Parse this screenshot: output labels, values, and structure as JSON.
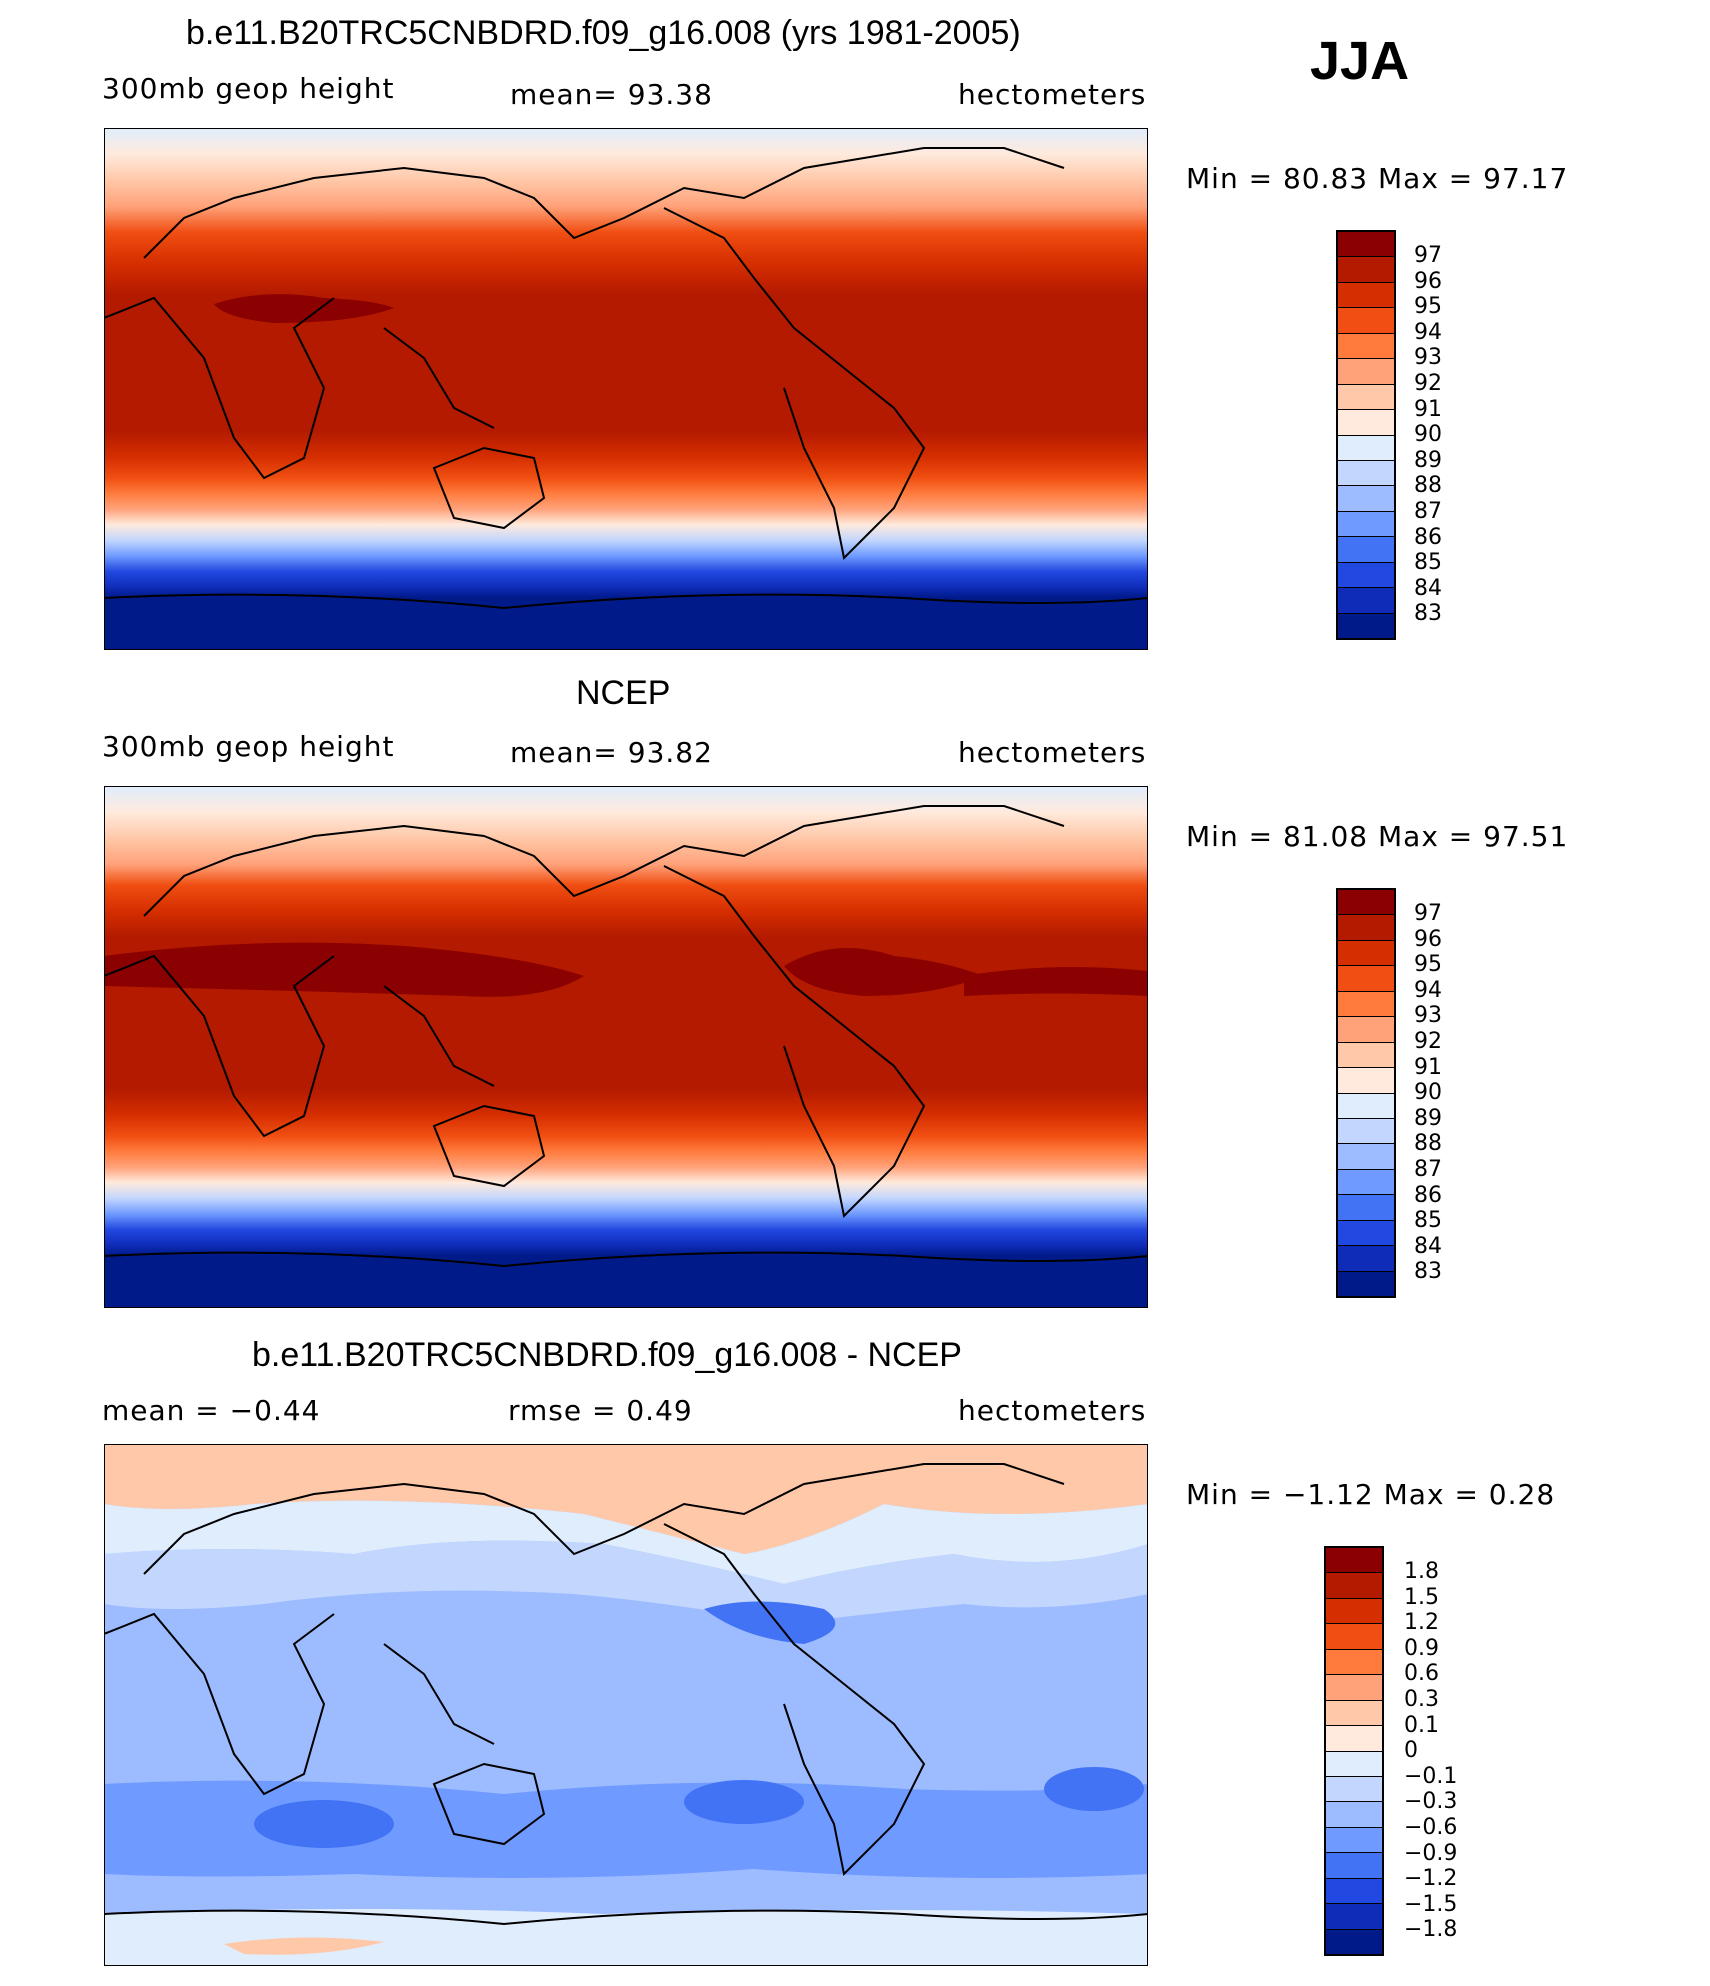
{
  "header": {
    "season": "JJA"
  },
  "panels": [
    {
      "title": "b.e11.B20TRC5CNBDRD.f09_g16.008 (yrs 1981-2005)",
      "left_label": "300mb  geop  height",
      "center_label": "mean=   93.38",
      "units": "hectometers",
      "minmax": "Min  =    80.83  Max  =    97.17",
      "colorbar": {
        "labels": [
          "97",
          "96",
          "95",
          "94",
          "93",
          "92",
          "91",
          "90",
          "89",
          "88",
          "87",
          "86",
          "85",
          "84",
          "83"
        ],
        "colors": [
          "#8b0000",
          "#b31a00",
          "#d52e00",
          "#f04e12",
          "#ff7b3d",
          "#ffa27a",
          "#ffc8a8",
          "#ffeadd",
          "#dfedfd",
          "#c2d6fe",
          "#9dbcff",
          "#6f9aff",
          "#4273f5",
          "#2148e0",
          "#0f2cb8",
          "#001a8a"
        ]
      },
      "field": {
        "type": "absolute",
        "comment": "Zonal contour bands of 300mb geopotential height (hm), north to south",
        "band_colors": [
          "#dfedfd",
          "#ffeadd",
          "#ffc8a8",
          "#ffa27a",
          "#ff7b3d",
          "#f04e12",
          "#d52e00",
          "#b31a00",
          "#b31a00",
          "#d52e00",
          "#f04e12",
          "#ff7b3d",
          "#ffa27a",
          "#ffc8a8",
          "#ffeadd",
          "#dfedfd",
          "#c2d6fe",
          "#9dbcff",
          "#6f9aff",
          "#4273f5",
          "#2148e0",
          "#0f2cb8",
          "#001a8a"
        ]
      }
    },
    {
      "title": "NCEP",
      "left_label": "300mb  geop  height",
      "center_label": "mean=   93.82",
      "units": "hectometers",
      "minmax": "Min  =    81.08  Max  =    97.51",
      "colorbar": {
        "labels": [
          "97",
          "96",
          "95",
          "94",
          "93",
          "92",
          "91",
          "90",
          "89",
          "88",
          "87",
          "86",
          "85",
          "84",
          "83"
        ],
        "colors": [
          "#8b0000",
          "#b31a00",
          "#d52e00",
          "#f04e12",
          "#ff7b3d",
          "#ffa27a",
          "#ffc8a8",
          "#ffeadd",
          "#dfedfd",
          "#c2d6fe",
          "#9dbcff",
          "#6f9aff",
          "#4273f5",
          "#2148e0",
          "#0f2cb8",
          "#001a8a"
        ]
      }
    },
    {
      "title": "b.e11.B20TRC5CNBDRD.f09_g16.008 - NCEP",
      "left_label": "mean  =    −0.44",
      "center_label": "rmse  =     0.49",
      "units": "hectometers",
      "minmax": "Min  =    −1.12  Max  =     0.28",
      "colorbar": {
        "labels": [
          "1.8",
          "1.5",
          "1.2",
          "0.9",
          "0.6",
          "0.3",
          "0.1",
          "0",
          "−0.1",
          "−0.3",
          "−0.6",
          "−0.9",
          "−1.2",
          "−1.5",
          "−1.8"
        ],
        "colors": [
          "#8b0000",
          "#b31a00",
          "#d52e00",
          "#f04e12",
          "#ff7b3d",
          "#ffa27a",
          "#ffc8a8",
          "#ffeadd",
          "#dfedfd",
          "#c2d6fe",
          "#9dbcff",
          "#6f9aff",
          "#4273f5",
          "#2148e0",
          "#0f2cb8",
          "#001a8a"
        ]
      }
    }
  ]
}
